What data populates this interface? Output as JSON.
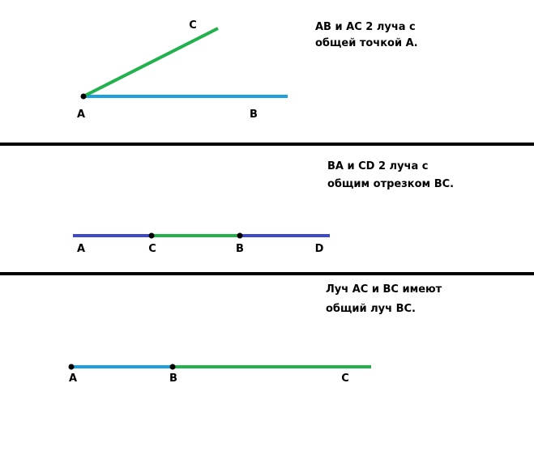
{
  "sections": [
    {
      "caption": [
        "AB и AC 2 луча с",
        "общей точкой А."
      ],
      "labels": [
        "C",
        "A",
        "B"
      ]
    },
    {
      "caption": [
        "BA и CD 2 луча с",
        "общим отрезком ВС."
      ],
      "labels": [
        "A",
        "C",
        "B",
        "D"
      ]
    },
    {
      "caption": [
        "Луч АС и ВС имеют",
        "общий луч ВС."
      ],
      "labels": [
        "A",
        "B",
        "C"
      ]
    }
  ]
}
